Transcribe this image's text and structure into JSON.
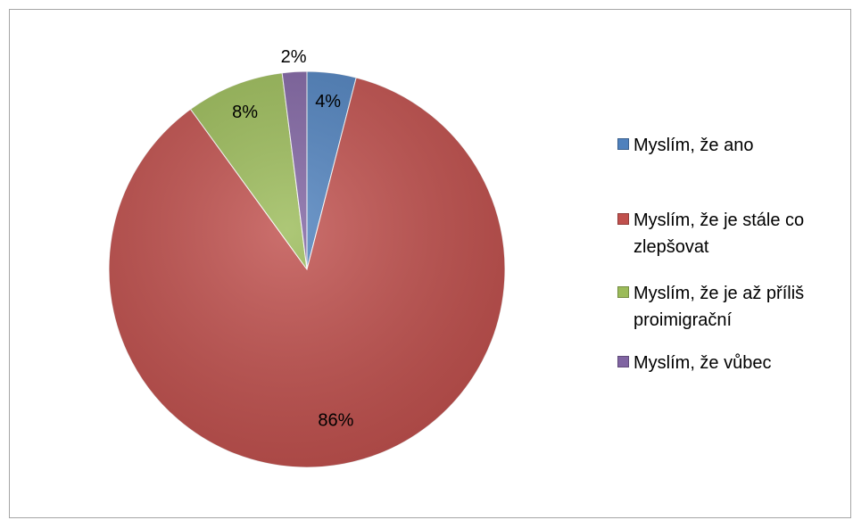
{
  "chart_data": {
    "type": "pie",
    "start_angle_deg": 0,
    "direction": "clockwise",
    "legend_position": "right",
    "slices": [
      {
        "label": "Myslím, že ano",
        "value": 4,
        "value_label": "4%",
        "color": "#4f81bd"
      },
      {
        "label": "Myslím, že je stále co zlepšovat",
        "value": 86,
        "value_label": "86%",
        "color": "#c0504d"
      },
      {
        "label": "Myslím, že je až příliš proimigrační",
        "value": 8,
        "value_label": "8%",
        "color": "#9bbb59"
      },
      {
        "label": "Myslím, že vůbec",
        "value": 2,
        "value_label": "2%",
        "color": "#8064a2"
      }
    ]
  }
}
